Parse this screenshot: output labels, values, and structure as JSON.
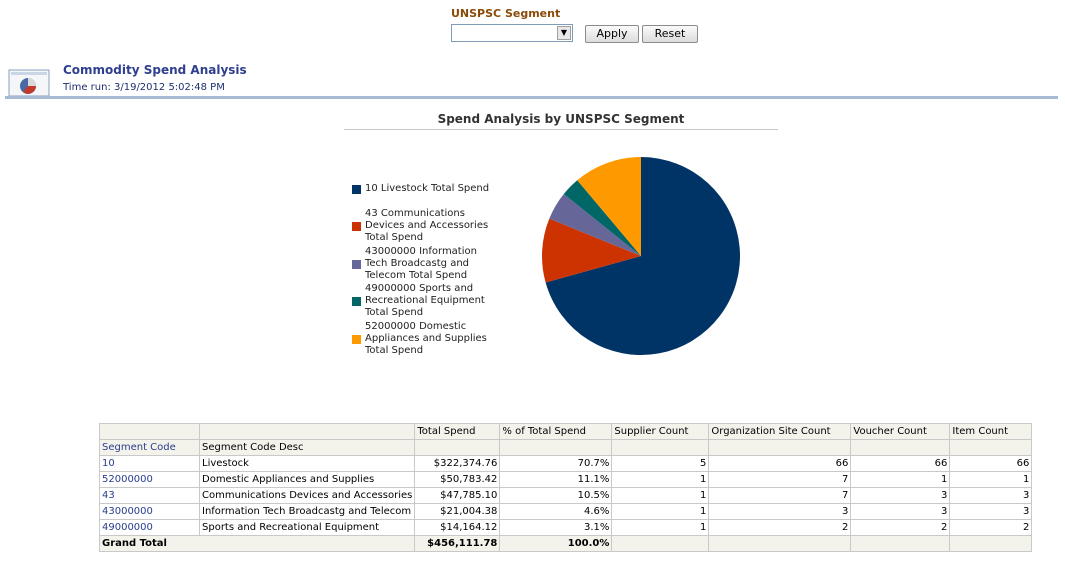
{
  "prompt": {
    "label": "UNSPSC Segment",
    "selected_value": "",
    "apply_label": "Apply",
    "reset_label": "Reset"
  },
  "report": {
    "title": "Commodity Spend Analysis",
    "time_run": "Time run: 3/19/2012 5:02:48 PM"
  },
  "chart_data": {
    "type": "pie",
    "title": "Spend Analysis by UNSPSC Segment",
    "legend_position": "left",
    "series": [
      {
        "name": "10 Livestock Total Spend",
        "value": 322374.76,
        "color": "#003366"
      },
      {
        "name": "43 Communications Devices and Accessories Total Spend",
        "value": 47785.1,
        "color": "#cc3300"
      },
      {
        "name": "43000000 Information Tech Broadcastg and Telecom Total Spend",
        "value": 21004.38,
        "color": "#666699"
      },
      {
        "name": "49000000 Sports and Recreational Equipment Total Spend",
        "value": 14164.12,
        "color": "#006666"
      },
      {
        "name": "52000000 Domestic Appliances and Supplies Total Spend",
        "value": 50783.42,
        "color": "#ff9900"
      }
    ]
  },
  "table": {
    "headers": {
      "segment_code": "Segment Code",
      "segment_code_desc": "Segment Code Desc",
      "total_spend": "Total Spend",
      "pct_total_spend": "% of Total Spend",
      "supplier_count": "Supplier Count",
      "org_site_count": "Organization Site Count",
      "voucher_count": "Voucher Count",
      "item_count": "Item Count"
    },
    "rows": [
      {
        "code": "10",
        "desc": "Livestock",
        "total": "$322,374.76",
        "pct": "70.7%",
        "supplier": "5",
        "org_site": "66",
        "voucher": "66",
        "item": "66"
      },
      {
        "code": "52000000",
        "desc": "Domestic Appliances and Supplies",
        "total": "$50,783.42",
        "pct": "11.1%",
        "supplier": "1",
        "org_site": "7",
        "voucher": "1",
        "item": "1"
      },
      {
        "code": "43",
        "desc": "Communications Devices and Accessories",
        "total": "$47,785.10",
        "pct": "10.5%",
        "supplier": "1",
        "org_site": "7",
        "voucher": "3",
        "item": "3"
      },
      {
        "code": "43000000",
        "desc": "Information Tech Broadcastg and Telecom",
        "total": "$21,004.38",
        "pct": "4.6%",
        "supplier": "1",
        "org_site": "3",
        "voucher": "3",
        "item": "3"
      },
      {
        "code": "49000000",
        "desc": "Sports and Recreational Equipment",
        "total": "$14,164.12",
        "pct": "3.1%",
        "supplier": "1",
        "org_site": "2",
        "voucher": "2",
        "item": "2"
      }
    ],
    "grand_total": {
      "label": "Grand Total",
      "total": "$456,111.78",
      "pct": "100.0%"
    }
  }
}
